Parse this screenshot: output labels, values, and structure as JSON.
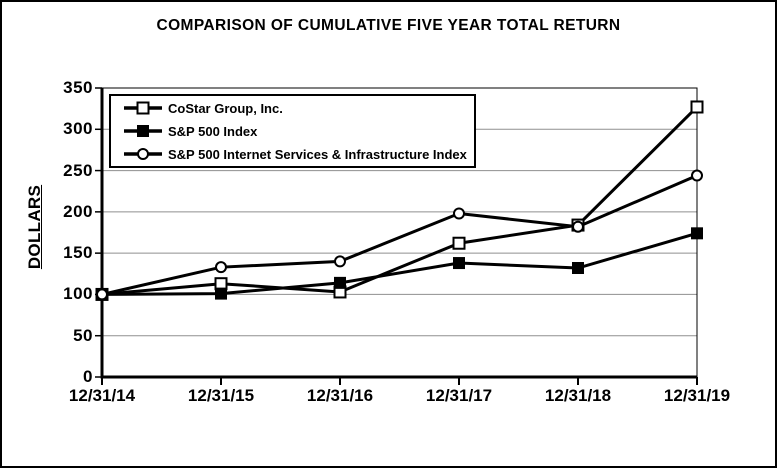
{
  "chart_data": {
    "type": "line",
    "title": "COMPARISON OF CUMULATIVE FIVE YEAR TOTAL RETURN",
    "ylabel": "DOLLARS",
    "xlabel": "",
    "categories": [
      "12/31/14",
      "12/31/15",
      "12/31/16",
      "12/31/17",
      "12/31/18",
      "12/31/19"
    ],
    "ylim": [
      0,
      350
    ],
    "yticks": [
      0,
      50,
      100,
      150,
      200,
      250,
      300,
      350
    ],
    "grid": true,
    "legend_position": "top-left-inside",
    "series": [
      {
        "name": "CoStar Group, Inc.",
        "marker": "open-square",
        "color": "#000000",
        "values": [
          100,
          113,
          103,
          162,
          184,
          327
        ]
      },
      {
        "name": "S&P 500 Index",
        "marker": "filled-square",
        "color": "#000000",
        "values": [
          100,
          101,
          114,
          138,
          132,
          174
        ]
      },
      {
        "name": "S&P 500 Internet Services & Infrastructure Index",
        "marker": "open-circle",
        "color": "#000000",
        "values": [
          100,
          133,
          140,
          198,
          182,
          244
        ]
      }
    ]
  },
  "colors": {
    "line": "#000000",
    "grid": "#8f8f8f",
    "background": "#ffffff",
    "frame_border": "#000000"
  }
}
